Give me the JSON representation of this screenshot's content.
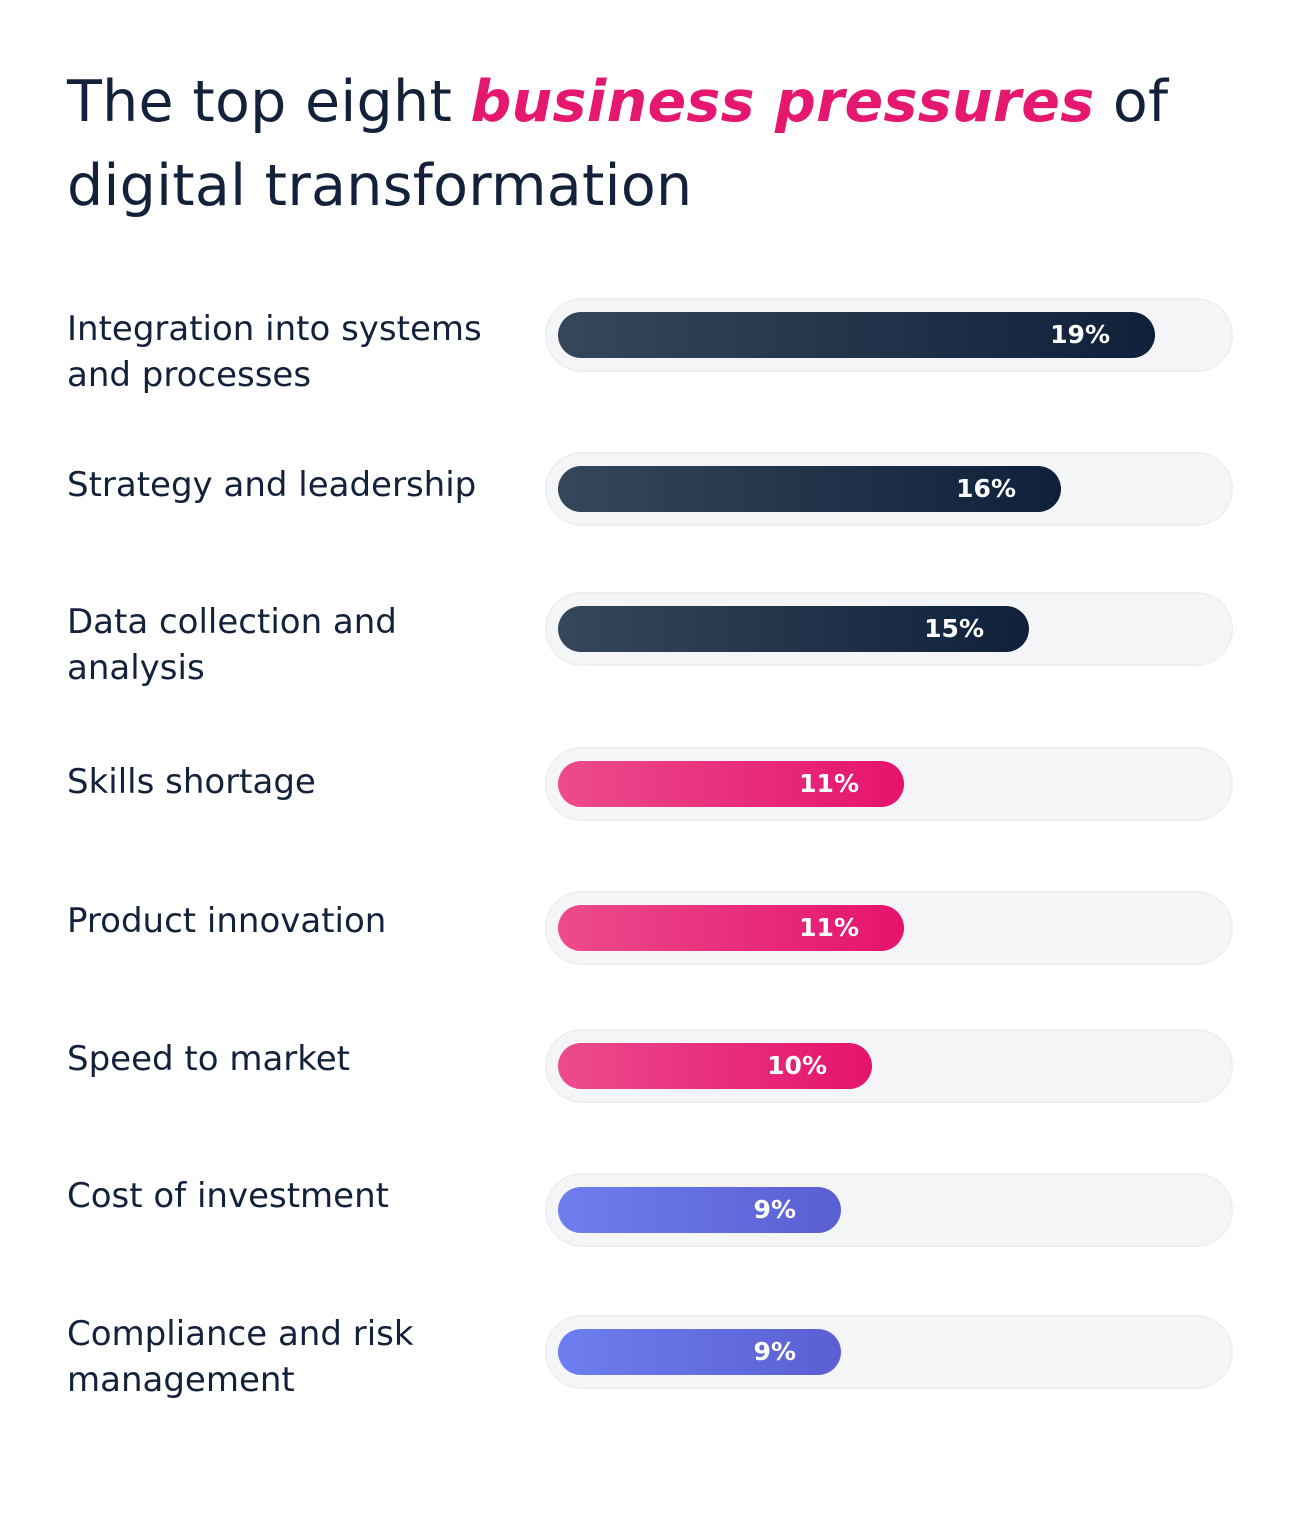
{
  "header": {
    "title_part1": "The top eight ",
    "title_accent": "business pressures",
    "title_part2": " of",
    "title_line2": "digital transformation"
  },
  "colors": {
    "dark": "#0f203a",
    "pink": "#e5136d",
    "purple": "#5a5fd2",
    "track": "#f4f5f7"
  },
  "chart_data": {
    "type": "bar",
    "orientation": "horizontal",
    "title": "The top eight business pressures of digital transformation",
    "xlim": [
      0,
      21
    ],
    "grid": false,
    "categories": [
      "Integration into systems and processes",
      "Strategy and leadership",
      "Data collection and analysis",
      "Skills shortage",
      "Product innovation",
      "Speed to market",
      "Cost of investment",
      "Compliance and risk management"
    ],
    "values": [
      19,
      16,
      15,
      11,
      11,
      10,
      9,
      9
    ],
    "value_labels": [
      "19%",
      "16%",
      "15%",
      "11%",
      "11%",
      "10%",
      "9%",
      "9%"
    ],
    "bar_colors": [
      "dark",
      "dark",
      "dark",
      "pink",
      "pink",
      "pink",
      "purple",
      "purple"
    ]
  }
}
